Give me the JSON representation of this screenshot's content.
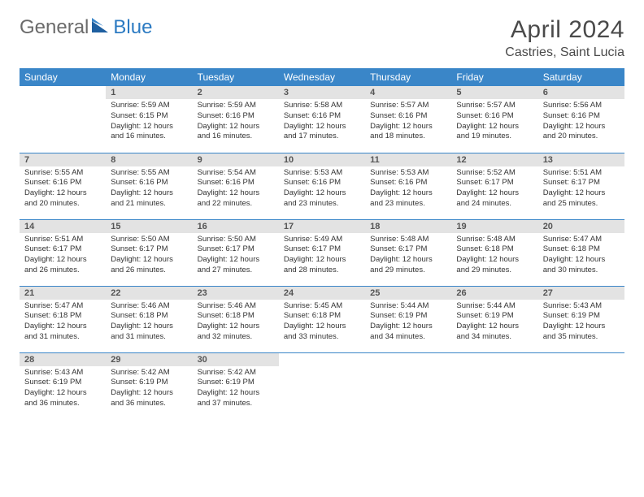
{
  "logo": {
    "general": "General",
    "blue": "Blue"
  },
  "title": "April 2024",
  "location": "Castries, Saint Lucia",
  "colors": {
    "header_bg": "#3a86c8",
    "header_fg": "#ffffff",
    "daynum_bg": "#e3e3e3",
    "daynum_fg": "#555555",
    "row_border": "#3a86c8",
    "text": "#333333",
    "title_fg": "#4a4a4a",
    "logo_gray": "#6b6b6b",
    "logo_blue": "#2b7ac2"
  },
  "day_headers": [
    "Sunday",
    "Monday",
    "Tuesday",
    "Wednesday",
    "Thursday",
    "Friday",
    "Saturday"
  ],
  "weeks": [
    [
      {
        "n": "",
        "sunrise": "",
        "sunset": "",
        "daylight": ""
      },
      {
        "n": "1",
        "sunrise": "Sunrise: 5:59 AM",
        "sunset": "Sunset: 6:15 PM",
        "daylight": "Daylight: 12 hours and 16 minutes."
      },
      {
        "n": "2",
        "sunrise": "Sunrise: 5:59 AM",
        "sunset": "Sunset: 6:16 PM",
        "daylight": "Daylight: 12 hours and 16 minutes."
      },
      {
        "n": "3",
        "sunrise": "Sunrise: 5:58 AM",
        "sunset": "Sunset: 6:16 PM",
        "daylight": "Daylight: 12 hours and 17 minutes."
      },
      {
        "n": "4",
        "sunrise": "Sunrise: 5:57 AM",
        "sunset": "Sunset: 6:16 PM",
        "daylight": "Daylight: 12 hours and 18 minutes."
      },
      {
        "n": "5",
        "sunrise": "Sunrise: 5:57 AM",
        "sunset": "Sunset: 6:16 PM",
        "daylight": "Daylight: 12 hours and 19 minutes."
      },
      {
        "n": "6",
        "sunrise": "Sunrise: 5:56 AM",
        "sunset": "Sunset: 6:16 PM",
        "daylight": "Daylight: 12 hours and 20 minutes."
      }
    ],
    [
      {
        "n": "7",
        "sunrise": "Sunrise: 5:55 AM",
        "sunset": "Sunset: 6:16 PM",
        "daylight": "Daylight: 12 hours and 20 minutes."
      },
      {
        "n": "8",
        "sunrise": "Sunrise: 5:55 AM",
        "sunset": "Sunset: 6:16 PM",
        "daylight": "Daylight: 12 hours and 21 minutes."
      },
      {
        "n": "9",
        "sunrise": "Sunrise: 5:54 AM",
        "sunset": "Sunset: 6:16 PM",
        "daylight": "Daylight: 12 hours and 22 minutes."
      },
      {
        "n": "10",
        "sunrise": "Sunrise: 5:53 AM",
        "sunset": "Sunset: 6:16 PM",
        "daylight": "Daylight: 12 hours and 23 minutes."
      },
      {
        "n": "11",
        "sunrise": "Sunrise: 5:53 AM",
        "sunset": "Sunset: 6:16 PM",
        "daylight": "Daylight: 12 hours and 23 minutes."
      },
      {
        "n": "12",
        "sunrise": "Sunrise: 5:52 AM",
        "sunset": "Sunset: 6:17 PM",
        "daylight": "Daylight: 12 hours and 24 minutes."
      },
      {
        "n": "13",
        "sunrise": "Sunrise: 5:51 AM",
        "sunset": "Sunset: 6:17 PM",
        "daylight": "Daylight: 12 hours and 25 minutes."
      }
    ],
    [
      {
        "n": "14",
        "sunrise": "Sunrise: 5:51 AM",
        "sunset": "Sunset: 6:17 PM",
        "daylight": "Daylight: 12 hours and 26 minutes."
      },
      {
        "n": "15",
        "sunrise": "Sunrise: 5:50 AM",
        "sunset": "Sunset: 6:17 PM",
        "daylight": "Daylight: 12 hours and 26 minutes."
      },
      {
        "n": "16",
        "sunrise": "Sunrise: 5:50 AM",
        "sunset": "Sunset: 6:17 PM",
        "daylight": "Daylight: 12 hours and 27 minutes."
      },
      {
        "n": "17",
        "sunrise": "Sunrise: 5:49 AM",
        "sunset": "Sunset: 6:17 PM",
        "daylight": "Daylight: 12 hours and 28 minutes."
      },
      {
        "n": "18",
        "sunrise": "Sunrise: 5:48 AM",
        "sunset": "Sunset: 6:17 PM",
        "daylight": "Daylight: 12 hours and 29 minutes."
      },
      {
        "n": "19",
        "sunrise": "Sunrise: 5:48 AM",
        "sunset": "Sunset: 6:18 PM",
        "daylight": "Daylight: 12 hours and 29 minutes."
      },
      {
        "n": "20",
        "sunrise": "Sunrise: 5:47 AM",
        "sunset": "Sunset: 6:18 PM",
        "daylight": "Daylight: 12 hours and 30 minutes."
      }
    ],
    [
      {
        "n": "21",
        "sunrise": "Sunrise: 5:47 AM",
        "sunset": "Sunset: 6:18 PM",
        "daylight": "Daylight: 12 hours and 31 minutes."
      },
      {
        "n": "22",
        "sunrise": "Sunrise: 5:46 AM",
        "sunset": "Sunset: 6:18 PM",
        "daylight": "Daylight: 12 hours and 31 minutes."
      },
      {
        "n": "23",
        "sunrise": "Sunrise: 5:46 AM",
        "sunset": "Sunset: 6:18 PM",
        "daylight": "Daylight: 12 hours and 32 minutes."
      },
      {
        "n": "24",
        "sunrise": "Sunrise: 5:45 AM",
        "sunset": "Sunset: 6:18 PM",
        "daylight": "Daylight: 12 hours and 33 minutes."
      },
      {
        "n": "25",
        "sunrise": "Sunrise: 5:44 AM",
        "sunset": "Sunset: 6:19 PM",
        "daylight": "Daylight: 12 hours and 34 minutes."
      },
      {
        "n": "26",
        "sunrise": "Sunrise: 5:44 AM",
        "sunset": "Sunset: 6:19 PM",
        "daylight": "Daylight: 12 hours and 34 minutes."
      },
      {
        "n": "27",
        "sunrise": "Sunrise: 5:43 AM",
        "sunset": "Sunset: 6:19 PM",
        "daylight": "Daylight: 12 hours and 35 minutes."
      }
    ],
    [
      {
        "n": "28",
        "sunrise": "Sunrise: 5:43 AM",
        "sunset": "Sunset: 6:19 PM",
        "daylight": "Daylight: 12 hours and 36 minutes."
      },
      {
        "n": "29",
        "sunrise": "Sunrise: 5:42 AM",
        "sunset": "Sunset: 6:19 PM",
        "daylight": "Daylight: 12 hours and 36 minutes."
      },
      {
        "n": "30",
        "sunrise": "Sunrise: 5:42 AM",
        "sunset": "Sunset: 6:19 PM",
        "daylight": "Daylight: 12 hours and 37 minutes."
      },
      {
        "n": "",
        "sunrise": "",
        "sunset": "",
        "daylight": ""
      },
      {
        "n": "",
        "sunrise": "",
        "sunset": "",
        "daylight": ""
      },
      {
        "n": "",
        "sunrise": "",
        "sunset": "",
        "daylight": ""
      },
      {
        "n": "",
        "sunrise": "",
        "sunset": "",
        "daylight": ""
      }
    ]
  ]
}
